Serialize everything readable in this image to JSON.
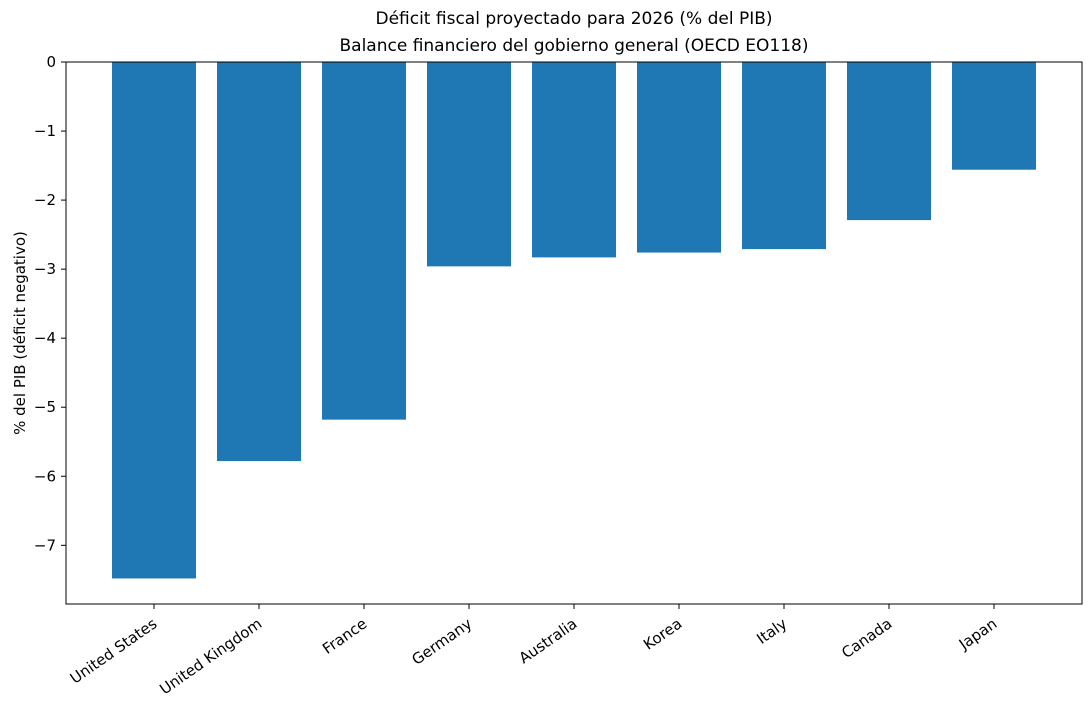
{
  "chart_data": {
    "type": "bar",
    "title": "Déficit fiscal proyectado para 2026 (% del PIB)",
    "subtitle": "Balance financiero del gobierno general (OECD EO118)",
    "xlabel": "",
    "ylabel": "% del PIB (déficit negativo)",
    "categories": [
      "United States",
      "United Kingdom",
      "France",
      "Germany",
      "Australia",
      "Korea",
      "Italy",
      "Canada",
      "Japan"
    ],
    "values": [
      -7.48,
      -5.78,
      -5.18,
      -2.96,
      -2.83,
      -2.76,
      -2.71,
      -2.29,
      -1.56
    ],
    "ylim": [
      -7.85,
      0
    ],
    "yticks": [
      0,
      -1,
      -2,
      -3,
      -4,
      -5,
      -6,
      -7
    ],
    "ytick_labels": [
      "0",
      "−1",
      "−2",
      "−3",
      "−4",
      "−5",
      "−6",
      "−7"
    ],
    "bar_color": "#1f77b4",
    "grid": false,
    "legend": "none"
  }
}
